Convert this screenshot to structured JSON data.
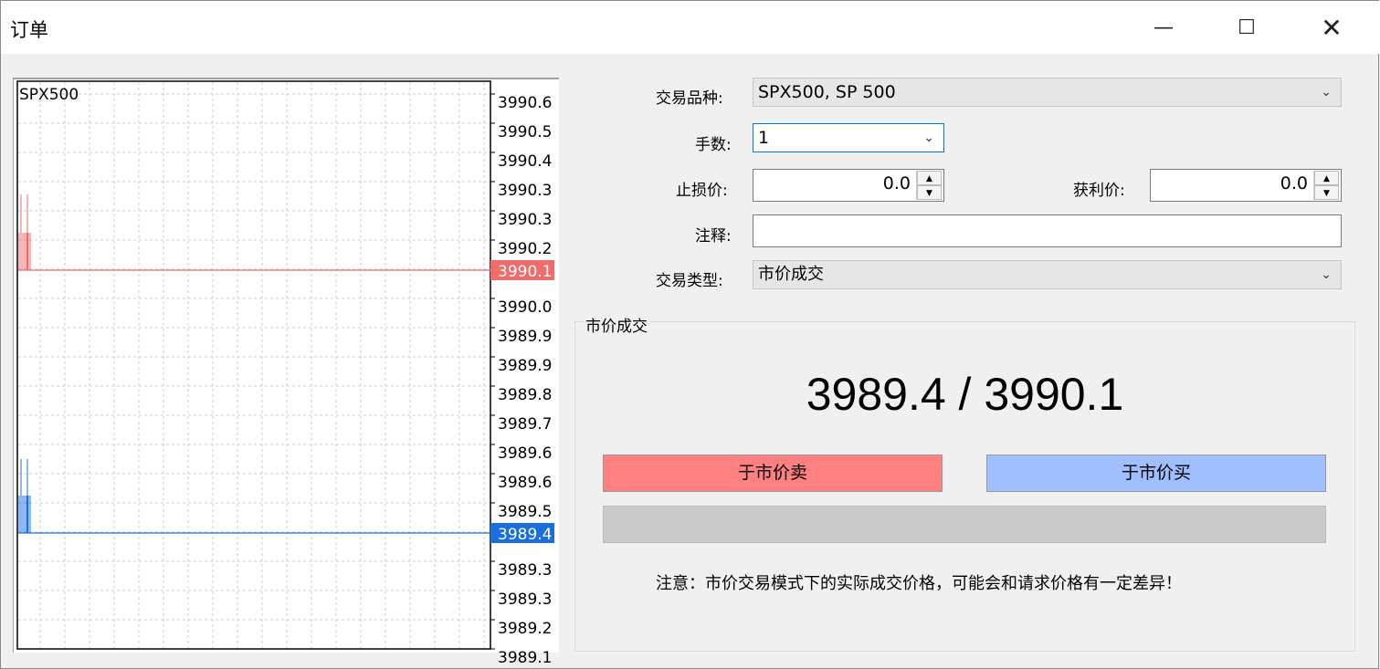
{
  "window": {
    "title": "订单",
    "minimize_icon": "minimize-icon",
    "maximize_icon": "maximize-icon",
    "close_icon": "close-icon"
  },
  "chart": {
    "symbol": "SPX500",
    "axis_labels": [
      "3990.6",
      "3990.5",
      "3990.4",
      "3990.3",
      "3990.3",
      "3990.2",
      "3990.1",
      "3990.0",
      "3989.9",
      "3989.9",
      "3989.8",
      "3989.7",
      "3989.6",
      "3989.6",
      "3989.5",
      "3989.4",
      "3989.3",
      "3989.3",
      "3989.2",
      "3989.1"
    ],
    "ask": "3990.1",
    "bid": "3989.4",
    "ask_color": "#f26b6b",
    "bid_color": "#1a6fe0"
  },
  "form": {
    "symbol_label": "交易品种:",
    "symbol_value": "SPX500, SP 500",
    "volume_label": "手数:",
    "volume_value": "1",
    "sl_label": "止损价:",
    "sl_value": "0.0",
    "tp_label": "获利价:",
    "tp_value": "0.0",
    "comment_label": "注释:",
    "comment_value": "",
    "type_label": "交易类型:",
    "type_value": "市价成交"
  },
  "market": {
    "group_title": "市价成交",
    "quote": "3989.4 / 3990.1",
    "sell_label": "于市价卖",
    "buy_label": "于市价买",
    "sell_color": "#fe8080",
    "buy_color": "#a0bfff",
    "note": "注意：市价交易模式下的实际成交价格，可能会和请求价格有一定差异！"
  }
}
